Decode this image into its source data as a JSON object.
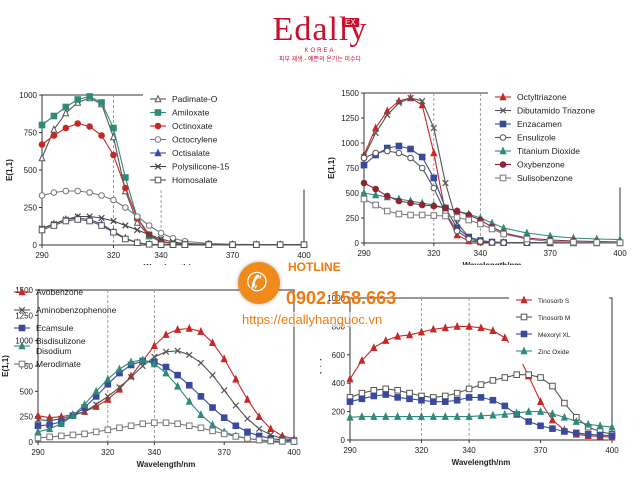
{
  "logo": {
    "brand": "Edally",
    "badge": "EX",
    "country": "KOREA",
    "tagline": "피부 재생 - 예쁜의 온기는 미수다"
  },
  "hotline": {
    "label": "HOTLINE",
    "phone": "0902.158.663",
    "url": "https://edallyhanquoc.vn"
  },
  "colors": {
    "accent": "#f08a1c",
    "brand": "#c8102e"
  },
  "chart_data": [
    {
      "type": "line",
      "ylabel": "E(1,1)",
      "xlabel": "Wavelength/nm",
      "xlim": [
        290,
        400
      ],
      "ylim": [
        0,
        1000
      ],
      "xticks": [
        290,
        320,
        340,
        370,
        400
      ],
      "yticks": [
        0,
        250,
        500,
        750,
        1000
      ],
      "yticklabels": [
        "0",
        "250",
        "500",
        "750",
        "1000"
      ],
      "x": [
        290,
        295,
        300,
        305,
        310,
        315,
        320,
        325,
        330,
        335,
        340,
        345,
        350,
        360,
        370,
        380,
        390,
        400
      ],
      "series": [
        {
          "name": "Padimate-O",
          "marker": "triangle-open",
          "color": "#555555",
          "values": [
            580,
            770,
            880,
            950,
            980,
            940,
            720,
            360,
            150,
            60,
            25,
            10,
            5,
            3,
            2,
            2,
            2,
            2
          ]
        },
        {
          "name": "Amiloxate",
          "marker": "square",
          "color": "#2e8b7a",
          "values": [
            800,
            860,
            920,
            970,
            990,
            950,
            780,
            450,
            180,
            60,
            20,
            8,
            5,
            3,
            2,
            2,
            2,
            2
          ]
        },
        {
          "name": "Octinoxate",
          "marker": "circle",
          "color": "#c62828",
          "values": [
            670,
            730,
            780,
            810,
            790,
            730,
            600,
            380,
            180,
            70,
            25,
            10,
            5,
            3,
            2,
            2,
            2,
            2
          ]
        },
        {
          "name": "Octocrylene",
          "marker": "circle-open",
          "color": "#777777",
          "values": [
            330,
            350,
            360,
            360,
            350,
            330,
            300,
            250,
            190,
            130,
            80,
            45,
            25,
            10,
            5,
            3,
            2,
            2
          ]
        },
        {
          "name": "Octisalate",
          "marker": "triangle",
          "color": "#3a4a9a",
          "values": [
            110,
            140,
            170,
            180,
            170,
            140,
            90,
            45,
            15,
            5,
            2,
            2,
            2,
            2,
            2,
            2,
            2,
            2
          ]
        },
        {
          "name": "Polysilicone-15",
          "marker": "x",
          "color": "#444444",
          "values": [
            110,
            140,
            170,
            190,
            190,
            180,
            160,
            130,
            100,
            70,
            40,
            20,
            10,
            5,
            3,
            2,
            2,
            2
          ]
        },
        {
          "name": "Homosalate",
          "marker": "square-open",
          "color": "#555555",
          "values": [
            100,
            130,
            160,
            170,
            160,
            130,
            85,
            40,
            15,
            5,
            2,
            2,
            2,
            2,
            2,
            2,
            2,
            2
          ]
        }
      ]
    },
    {
      "type": "line",
      "ylabel": "E(1,1)",
      "xlabel": "Wavelength/nm",
      "xlim": [
        290,
        400
      ],
      "ylim": [
        0,
        1500
      ],
      "xticks": [
        290,
        320,
        340,
        370,
        400
      ],
      "yticks": [
        0,
        250,
        500,
        750,
        1000,
        1250,
        1500
      ],
      "yticklabels": [
        "0",
        "250",
        "500",
        "750",
        "1000",
        "1250",
        "1500"
      ],
      "x": [
        290,
        295,
        300,
        305,
        310,
        315,
        320,
        325,
        330,
        335,
        340,
        345,
        350,
        360,
        370,
        380,
        390,
        400
      ],
      "series": [
        {
          "name": "Octyltriazone",
          "marker": "triangle",
          "color": "#c62828",
          "values": [
            880,
            1150,
            1320,
            1420,
            1450,
            1380,
            900,
            300,
            80,
            20,
            10,
            5,
            5,
            3,
            2,
            2,
            2,
            2
          ]
        },
        {
          "name": "Dibutamido Triazone",
          "marker": "x",
          "color": "#555555",
          "values": [
            860,
            1100,
            1280,
            1400,
            1450,
            1420,
            1150,
            600,
            200,
            60,
            20,
            10,
            5,
            3,
            2,
            2,
            2,
            2
          ]
        },
        {
          "name": "Enzacamen",
          "marker": "square",
          "color": "#3a4a9a",
          "values": [
            780,
            880,
            950,
            970,
            940,
            860,
            650,
            350,
            150,
            60,
            25,
            10,
            5,
            3,
            2,
            2,
            2,
            2
          ]
        },
        {
          "name": "Ensulizole",
          "marker": "circle-open",
          "color": "#555555",
          "values": [
            850,
            900,
            920,
            900,
            850,
            750,
            550,
            300,
            120,
            40,
            15,
            5,
            3,
            2,
            2,
            2,
            2,
            2
          ]
        },
        {
          "name": "Titanium Dioxide",
          "marker": "triangle",
          "color": "#2e8b7a",
          "values": [
            500,
            480,
            460,
            440,
            420,
            400,
            380,
            350,
            320,
            290,
            250,
            200,
            150,
            100,
            70,
            50,
            40,
            35
          ]
        },
        {
          "name": "Oxybenzone",
          "marker": "circle",
          "color": "#8b2635",
          "values": [
            600,
            540,
            470,
            420,
            400,
            380,
            370,
            350,
            320,
            280,
            230,
            160,
            100,
            50,
            30,
            20,
            15,
            10
          ]
        },
        {
          "name": "Sulisobenzone",
          "marker": "square-open",
          "color": "#777777",
          "values": [
            440,
            380,
            320,
            290,
            280,
            280,
            275,
            270,
            255,
            230,
            190,
            140,
            90,
            40,
            15,
            8,
            5,
            3
          ]
        }
      ]
    },
    {
      "type": "line",
      "ylabel": "E(1,1)",
      "xlabel": "Wavelength/nm",
      "xlim": [
        290,
        400
      ],
      "ylim": [
        0,
        1500
      ],
      "xticks": [
        290,
        320,
        340,
        370,
        400
      ],
      "yticks": [
        0,
        250,
        500,
        750,
        1000,
        1250,
        1500
      ],
      "yticklabels": [
        "0",
        "250",
        "500",
        "750",
        "1000",
        "1250",
        "1500"
      ],
      "x": [
        290,
        295,
        300,
        305,
        310,
        315,
        320,
        325,
        330,
        335,
        340,
        345,
        350,
        355,
        360,
        365,
        370,
        375,
        380,
        385,
        390,
        395,
        400
      ],
      "series": [
        {
          "name": "Avobenzone",
          "marker": "triangle",
          "color": "#c62828",
          "values": [
            260,
            240,
            250,
            270,
            300,
            350,
            420,
            520,
            650,
            800,
            950,
            1060,
            1110,
            1120,
            1090,
            980,
            820,
            620,
            420,
            250,
            130,
            60,
            30
          ]
        },
        {
          "name": "Aminobenzophenone",
          "marker": "x",
          "color": "#555555",
          "values": [
            220,
            210,
            230,
            260,
            300,
            370,
            450,
            540,
            640,
            750,
            840,
            890,
            900,
            860,
            780,
            660,
            510,
            360,
            230,
            130,
            70,
            35,
            20
          ]
        },
        {
          "name": "Ecamsule",
          "marker": "square",
          "color": "#3a4a9a",
          "values": [
            160,
            170,
            200,
            260,
            340,
            450,
            570,
            680,
            760,
            800,
            790,
            740,
            660,
            560,
            450,
            340,
            240,
            160,
            100,
            60,
            35,
            20,
            10
          ]
        },
        {
          "name": "Bisdisulizone Disodium",
          "marker": "triangle",
          "color": "#2e8b7a",
          "values": [
            100,
            130,
            180,
            260,
            370,
            500,
            620,
            720,
            790,
            810,
            770,
            680,
            550,
            400,
            270,
            170,
            100,
            60,
            35,
            20,
            10,
            5,
            3
          ]
        },
        {
          "name": "Merodimate",
          "marker": "square-open",
          "color": "#777777",
          "values": [
            40,
            50,
            60,
            70,
            80,
            100,
            120,
            140,
            160,
            180,
            190,
            190,
            180,
            160,
            140,
            110,
            80,
            55,
            35,
            20,
            12,
            8,
            5
          ]
        }
      ]
    },
    {
      "type": "line",
      "ylabel": "E(1,1)",
      "xlabel": "Wavelength/nm",
      "xlim": [
        290,
        400
      ],
      "ylim": [
        0,
        1000
      ],
      "xticks": [
        290,
        320,
        340,
        370,
        400
      ],
      "yticks": [
        0,
        200,
        400,
        600,
        800,
        1000
      ],
      "yticklabels": [
        "0",
        "200",
        "400",
        "600",
        "800",
        "1000"
      ],
      "x": [
        290,
        295,
        300,
        305,
        310,
        315,
        320,
        325,
        330,
        335,
        340,
        345,
        350,
        355,
        360,
        365,
        370,
        375,
        380,
        385,
        390,
        395,
        400
      ],
      "series": [
        {
          "name": "Tinosorb S",
          "marker": "triangle",
          "color": "#c62828",
          "values": [
            430,
            560,
            650,
            700,
            730,
            740,
            760,
            780,
            790,
            800,
            800,
            790,
            770,
            720,
            620,
            450,
            270,
            140,
            70,
            40,
            30,
            25,
            20
          ]
        },
        {
          "name": "Tinosorb M",
          "marker": "square-open",
          "color": "#555555",
          "values": [
            300,
            330,
            350,
            360,
            350,
            330,
            310,
            300,
            310,
            330,
            360,
            390,
            420,
            440,
            460,
            460,
            440,
            380,
            260,
            160,
            90,
            60,
            40
          ]
        },
        {
          "name": "Mexoryl XL",
          "marker": "square",
          "color": "#3a4a9a",
          "values": [
            270,
            290,
            310,
            320,
            300,
            290,
            280,
            270,
            270,
            280,
            300,
            300,
            280,
            240,
            180,
            130,
            100,
            80,
            60,
            50,
            40,
            35,
            30
          ]
        },
        {
          "name": "Zinc Oxide",
          "marker": "triangle",
          "color": "#2e8b7a",
          "values": [
            160,
            165,
            165,
            165,
            165,
            165,
            165,
            165,
            165,
            165,
            165,
            170,
            175,
            180,
            190,
            200,
            200,
            185,
            160,
            130,
            110,
            100,
            90
          ]
        }
      ]
    }
  ]
}
